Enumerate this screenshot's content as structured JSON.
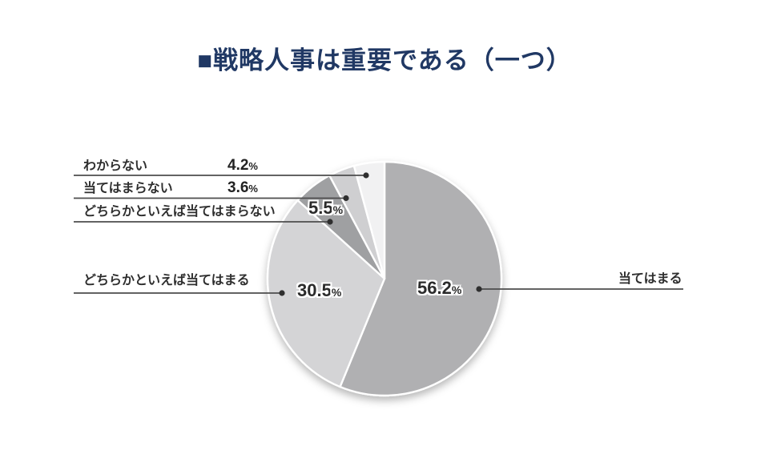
{
  "title": {
    "text": "■戦略人事は重要である（一つ）",
    "color": "#203864"
  },
  "units": {
    "percent": "%"
  },
  "chart_data": {
    "type": "pie",
    "title": "戦略人事は重要である（一つ）",
    "start_angle_deg": -90,
    "direction": "clockwise",
    "total": 100,
    "slices": [
      {
        "label": "当てはまる",
        "value": 56.2,
        "color": "#b0b0b2"
      },
      {
        "label": "どちらかといえば当てはまる",
        "value": 30.5,
        "color": "#d4d4d6"
      },
      {
        "label": "どちらかといえば当てはまらない",
        "value": 5.5,
        "color": "#9fa0a2"
      },
      {
        "label": "当てはまらない",
        "value": 3.6,
        "color": "#cfcfd1"
      },
      {
        "label": "わからない",
        "value": 4.2,
        "color": "#f1f1f2"
      }
    ],
    "leader_line_color": "#4d4d4d",
    "dot_color": "#2f2f2f",
    "slice_border_color": "#ffffff"
  }
}
